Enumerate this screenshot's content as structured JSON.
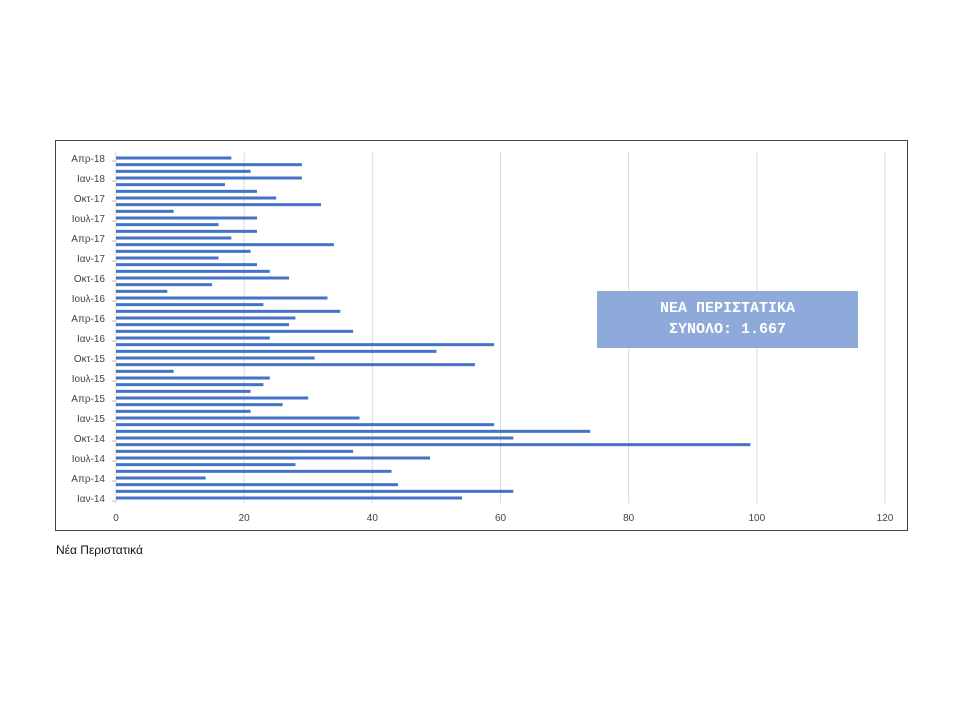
{
  "chart_data": {
    "type": "bar",
    "orientation": "horizontal",
    "categories": [
      "Ιαν-14",
      "",
      "",
      "Απρ-14",
      "",
      "",
      "Ιουλ-14",
      "",
      "",
      "Οκτ-14",
      "",
      "",
      "Ιαν-15",
      "",
      "",
      "Απρ-15",
      "",
      "",
      "Ιουλ-15",
      "",
      "",
      "Οκτ-15",
      "",
      "",
      "Ιαν-16",
      "",
      "",
      "Απρ-16",
      "",
      "",
      "Ιουλ-16",
      "",
      "",
      "Οκτ-16",
      "",
      "",
      "Ιαν-17",
      "",
      "",
      "Απρ-17",
      "",
      "",
      "Ιουλ-17",
      "",
      "",
      "Οκτ-17",
      "",
      "",
      "Ιαν-18",
      "",
      "",
      "Απρ-18"
    ],
    "values": [
      54,
      62,
      44,
      14,
      43,
      28,
      49,
      37,
      99,
      62,
      74,
      59,
      38,
      21,
      26,
      30,
      21,
      23,
      24,
      9,
      56,
      31,
      50,
      59,
      24,
      37,
      27,
      28,
      35,
      23,
      33,
      8,
      15,
      27,
      24,
      22,
      16,
      21,
      34,
      18,
      22,
      16,
      22,
      9,
      32,
      25,
      22,
      17,
      29,
      21,
      29,
      18
    ],
    "xlim": [
      0,
      120
    ],
    "xticks": [
      "0",
      "20",
      "40",
      "60",
      "80",
      "100",
      "120"
    ],
    "grid": "vertical",
    "bar_color": "#4472c4",
    "annotation": {
      "line1": "ΝΕΑ ΠΕΡΙΣΤΑΤΙΚΑ",
      "line2": "ΣΥΝΟΛΟ: 1.667",
      "color": "#8eaadb"
    }
  },
  "caption": "Νέα Περιστατικά"
}
